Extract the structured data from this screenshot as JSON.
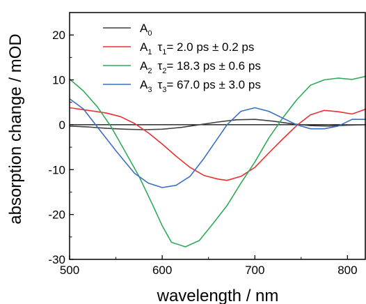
{
  "chart_data": {
    "type": "line",
    "xlabel": "wavelength / nm",
    "ylabel": "absorption change / mOD",
    "xlim": [
      500,
      820
    ],
    "ylim": [
      -30,
      25
    ],
    "xticks": [
      500,
      600,
      700,
      800
    ],
    "yticks": [
      -30,
      -20,
      -10,
      0,
      10,
      20
    ],
    "zero_line": true,
    "grid": false,
    "legend_position": "top-center",
    "series": [
      {
        "name": "A0",
        "label_main": "A",
        "label_sub": "0",
        "label_rest": "",
        "color": "#404040",
        "x": [
          500,
          520,
          540,
          560,
          580,
          600,
          620,
          640,
          660,
          680,
          700,
          720,
          740,
          760,
          780,
          800,
          820
        ],
        "y": [
          -0.3,
          -0.5,
          -0.8,
          -1.0,
          -1.1,
          -1.0,
          -0.6,
          0.0,
          0.6,
          1.1,
          1.2,
          0.8,
          0.2,
          -0.2,
          -0.3,
          -0.1,
          0.0
        ]
      },
      {
        "name": "A1",
        "label_main": "A",
        "label_sub": "1",
        "tau_sub": "1",
        "label_rest": "= 2.0 ps   ± 0.2 ps",
        "color": "#e8312f",
        "x": [
          500,
          520,
          540,
          555,
          570,
          585,
          600,
          615,
          630,
          645,
          660,
          670,
          685,
          700,
          715,
          730,
          745,
          760,
          775,
          790,
          805,
          820
        ],
        "y": [
          3.8,
          3.2,
          2.6,
          1.8,
          0.3,
          -1.8,
          -4.3,
          -7.0,
          -9.5,
          -11.3,
          -12.1,
          -12.4,
          -11.5,
          -9.5,
          -6.3,
          -3.2,
          -0.2,
          2.2,
          3.2,
          2.9,
          2.4,
          3.5
        ]
      },
      {
        "name": "A2",
        "label_main": "A",
        "label_sub": "2",
        "tau_sub": "2",
        "label_rest": "= 18.3 ps ± 0.6 ps",
        "color": "#2fa95a",
        "x": [
          500,
          515,
          530,
          545,
          560,
          575,
          590,
          600,
          610,
          625,
          640,
          655,
          670,
          685,
          700,
          715,
          730,
          745,
          760,
          775,
          790,
          805,
          820
        ],
        "y": [
          10.2,
          7.5,
          4.0,
          -0.5,
          -6.0,
          -11.5,
          -18.0,
          -22.5,
          -26.2,
          -27.2,
          -25.8,
          -22.0,
          -18.0,
          -13.0,
          -8.3,
          -3.0,
          1.5,
          5.5,
          8.8,
          10.0,
          10.4,
          10.1,
          10.8
        ]
      },
      {
        "name": "A3",
        "label_main": "A",
        "label_sub": "3",
        "tau_sub": "3",
        "label_rest": "= 67.0 ps ± 3.0 ps",
        "color": "#3a6fbf",
        "x": [
          500,
          515,
          530,
          550,
          570,
          585,
          600,
          615,
          630,
          645,
          660,
          670,
          685,
          700,
          715,
          730,
          745,
          760,
          775,
          790,
          805,
          820
        ],
        "y": [
          5.8,
          3.5,
          -0.5,
          -5.8,
          -10.8,
          -13.0,
          -14.0,
          -13.5,
          -11.5,
          -7.5,
          -3.0,
          0.0,
          3.0,
          3.8,
          3.0,
          1.5,
          0.0,
          -0.9,
          -0.9,
          -0.3,
          1.2,
          1.2
        ]
      }
    ]
  }
}
